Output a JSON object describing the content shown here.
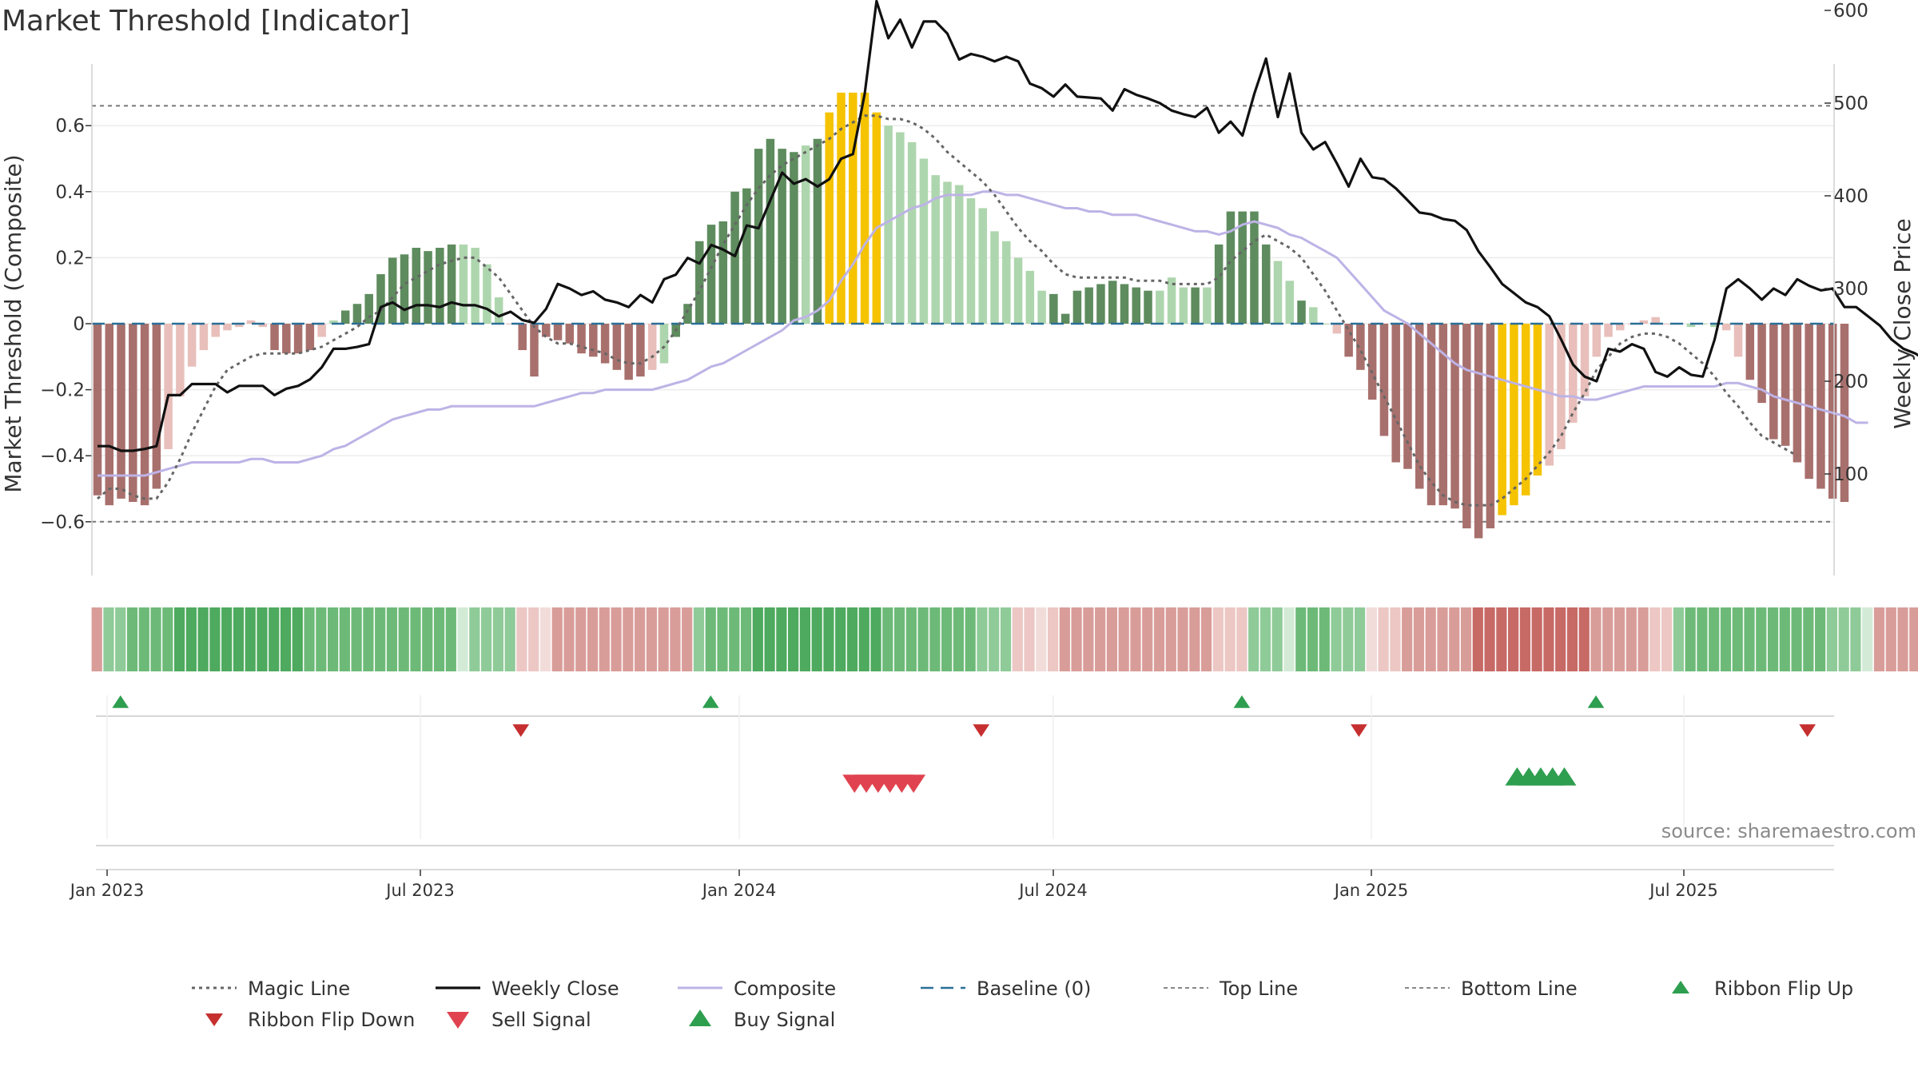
{
  "chart_data": {
    "type": "bar",
    "title": "Market Threshold [Indicator]",
    "ylabel_left": "Market Threshold (Composite)",
    "ylabel_right": "Weekly Close Price",
    "source": "source: sharemaestro.com",
    "yticks_left": [
      "0.6",
      "0.4",
      "0.2",
      "0",
      "−0.2",
      "−0.4",
      "−0.6"
    ],
    "yticks_right": [
      "600",
      "500",
      "400",
      "300",
      "200",
      "100"
    ],
    "xticks": [
      "Jan 2023",
      "Jul 2023",
      "Jan 2024",
      "Jul 2024",
      "Jan 2025",
      "Jul 2025"
    ],
    "top_line": 0.66,
    "bottom_line": -0.6,
    "colors": {
      "strong_green": "#5e8c5e",
      "light_green": "#aed6ae",
      "strong_red": "#a8706d",
      "light_red": "#e8bfbb",
      "gold": "#f5c300",
      "weekly_close": "#111111",
      "composite": "#bdb3e6",
      "magic": "#666666",
      "baseline": "#2a6f97",
      "buy": "#2e9e4f",
      "sell": "#d23a3a"
    },
    "composite_bars": [
      -0.52,
      -0.55,
      -0.53,
      -0.54,
      -0.55,
      -0.5,
      -0.38,
      -0.22,
      -0.13,
      -0.08,
      -0.04,
      -0.02,
      -0.01,
      0.01,
      -0.01,
      -0.08,
      -0.09,
      -0.09,
      -0.08,
      -0.04,
      0.01,
      0.04,
      0.06,
      0.09,
      0.15,
      0.2,
      0.21,
      0.23,
      0.22,
      0.23,
      0.24,
      0.24,
      0.23,
      0.18,
      0.08,
      0,
      -0.08,
      -0.16,
      -0.04,
      -0.05,
      -0.06,
      -0.09,
      -0.1,
      -0.12,
      -0.14,
      -0.17,
      -0.16,
      -0.14,
      -0.12,
      -0.04,
      0.06,
      0.25,
      0.3,
      0.31,
      0.4,
      0.41,
      0.53,
      0.56,
      0.53,
      0.52,
      0.54,
      0.56,
      0.64,
      0.7,
      0.7,
      0.7,
      0.64,
      0.6,
      0.58,
      0.55,
      0.5,
      0.45,
      0.43,
      0.42,
      0.38,
      0.35,
      0.28,
      0.25,
      0.2,
      0.16,
      0.1,
      0.09,
      0.03,
      0.1,
      0.11,
      0.12,
      0.13,
      0.12,
      0.11,
      0.1,
      0.1,
      0.14,
      0.11,
      0.11,
      0.11,
      0.24,
      0.34,
      0.34,
      0.34,
      0.24,
      0.19,
      0.13,
      0.07,
      0.05,
      0,
      -0.03,
      -0.1,
      -0.14,
      -0.23,
      -0.34,
      -0.42,
      -0.44,
      -0.5,
      -0.55,
      -0.55,
      -0.56,
      -0.62,
      -0.65,
      -0.62,
      -0.58,
      -0.55,
      -0.52,
      -0.46,
      -0.43,
      -0.38,
      -0.3,
      -0.22,
      -0.1,
      -0.04,
      -0.02,
      0,
      0.01,
      0.02,
      0,
      0,
      -0.01,
      0,
      -0.01,
      -0.02,
      -0.1,
      -0.17,
      -0.24,
      -0.35,
      -0.37,
      -0.42,
      -0.47,
      -0.5,
      -0.53,
      -0.54
    ],
    "bar_tones": "RRRRRRrrrrrrrrrRRRRrgGGGGGGGGGGggggrRRRRRRRRRRRrgGGGGGGGGGGGgGYYYYYggggggggggggggGGGGGGGGGgggGgGGGGGggGggrRRRRRRRRRRRRRYYYYrrrrrrrrrrrggggrrRRRRRRRRRR",
    "weekly_close": [
      130,
      130,
      125,
      125,
      127,
      130,
      185,
      185,
      197,
      197,
      197,
      188,
      195,
      195,
      195,
      185,
      192,
      195,
      202,
      215,
      235,
      235,
      237,
      240,
      280,
      285,
      277,
      282,
      282,
      280,
      285,
      282,
      282,
      278,
      270,
      275,
      266,
      263,
      278,
      305,
      300,
      293,
      297,
      288,
      285,
      280,
      293,
      285,
      310,
      315,
      333,
      327,
      347,
      342,
      335,
      368,
      365,
      395,
      425,
      413,
      418,
      410,
      418,
      440,
      445,
      510,
      610,
      570,
      590,
      560,
      588,
      588,
      575,
      547,
      553,
      550,
      545,
      550,
      545,
      521,
      516,
      507,
      520,
      507,
      506,
      505,
      492,
      515,
      509,
      505,
      500,
      492,
      488,
      485,
      495,
      468,
      480,
      465,
      510,
      548,
      485,
      532,
      468,
      450,
      458,
      435,
      410,
      440,
      420,
      418,
      408,
      395,
      382,
      380,
      375,
      373,
      363,
      340,
      323,
      305,
      295,
      285,
      280,
      270,
      245,
      218,
      205,
      200,
      235,
      232,
      240,
      235,
      210,
      205,
      215,
      207,
      205,
      245,
      300,
      310,
      300,
      288,
      300,
      293,
      310,
      303,
      298,
      300,
      280,
      280,
      270,
      260,
      245,
      235,
      230,
      222,
      206,
      200,
      205,
      215,
      228,
      226
    ],
    "composite_line": [
      -0.46,
      -0.46,
      -0.46,
      -0.46,
      -0.46,
      -0.45,
      -0.44,
      -0.43,
      -0.42,
      -0.42,
      -0.42,
      -0.42,
      -0.42,
      -0.41,
      -0.41,
      -0.42,
      -0.42,
      -0.42,
      -0.41,
      -0.4,
      -0.38,
      -0.37,
      -0.35,
      -0.33,
      -0.31,
      -0.29,
      -0.28,
      -0.27,
      -0.26,
      -0.26,
      -0.25,
      -0.25,
      -0.25,
      -0.25,
      -0.25,
      -0.25,
      -0.25,
      -0.25,
      -0.24,
      -0.23,
      -0.22,
      -0.21,
      -0.21,
      -0.2,
      -0.2,
      -0.2,
      -0.2,
      -0.2,
      -0.19,
      -0.18,
      -0.17,
      -0.15,
      -0.13,
      -0.12,
      -0.1,
      -0.08,
      -0.06,
      -0.04,
      -0.02,
      0.01,
      0.02,
      0.04,
      0.07,
      0.13,
      0.18,
      0.24,
      0.29,
      0.31,
      0.33,
      0.35,
      0.36,
      0.38,
      0.39,
      0.39,
      0.39,
      0.4,
      0.4,
      0.39,
      0.39,
      0.38,
      0.37,
      0.36,
      0.35,
      0.35,
      0.34,
      0.34,
      0.33,
      0.33,
      0.33,
      0.32,
      0.31,
      0.3,
      0.29,
      0.28,
      0.28,
      0.27,
      0.28,
      0.3,
      0.31,
      0.3,
      0.29,
      0.27,
      0.26,
      0.24,
      0.22,
      0.2,
      0.16,
      0.12,
      0.08,
      0.04,
      0.02,
      0,
      -0.03,
      -0.06,
      -0.09,
      -0.12,
      -0.14,
      -0.15,
      -0.16,
      -0.17,
      -0.18,
      -0.19,
      -0.2,
      -0.21,
      -0.22,
      -0.22,
      -0.23,
      -0.23,
      -0.22,
      -0.21,
      -0.2,
      -0.19,
      -0.19,
      -0.19,
      -0.19,
      -0.19,
      -0.19,
      -0.19,
      -0.18,
      -0.18,
      -0.19,
      -0.2,
      -0.22,
      -0.23,
      -0.24,
      -0.25,
      -0.26,
      -0.27,
      -0.28,
      -0.3,
      -0.3
    ],
    "magic_line": [
      -0.53,
      -0.5,
      -0.5,
      -0.52,
      -0.53,
      -0.53,
      -0.48,
      -0.41,
      -0.33,
      -0.26,
      -0.19,
      -0.14,
      -0.12,
      -0.1,
      -0.09,
      -0.09,
      -0.09,
      -0.09,
      -0.08,
      -0.07,
      -0.05,
      -0.03,
      -0.01,
      0.02,
      0.04,
      0.08,
      0.12,
      0.14,
      0.16,
      0.18,
      0.19,
      0.2,
      0.2,
      0.17,
      0.14,
      0.09,
      0.04,
      -0.01,
      -0.04,
      -0.06,
      -0.06,
      -0.07,
      -0.08,
      -0.09,
      -0.11,
      -0.12,
      -0.12,
      -0.1,
      -0.07,
      -0.02,
      0.04,
      0.1,
      0.17,
      0.24,
      0.3,
      0.36,
      0.41,
      0.45,
      0.48,
      0.5,
      0.52,
      0.54,
      0.56,
      0.59,
      0.61,
      0.63,
      0.63,
      0.62,
      0.62,
      0.61,
      0.59,
      0.56,
      0.52,
      0.49,
      0.46,
      0.43,
      0.39,
      0.34,
      0.29,
      0.25,
      0.22,
      0.18,
      0.15,
      0.14,
      0.14,
      0.14,
      0.14,
      0.14,
      0.13,
      0.13,
      0.13,
      0.12,
      0.12,
      0.12,
      0.12,
      0.14,
      0.19,
      0.22,
      0.25,
      0.27,
      0.25,
      0.23,
      0.2,
      0.15,
      0.1,
      0.04,
      -0.02,
      -0.08,
      -0.15,
      -0.22,
      -0.29,
      -0.36,
      -0.43,
      -0.48,
      -0.52,
      -0.54,
      -0.55,
      -0.55,
      -0.55,
      -0.53,
      -0.5,
      -0.47,
      -0.43,
      -0.39,
      -0.34,
      -0.27,
      -0.21,
      -0.14,
      -0.1,
      -0.06,
      -0.04,
      -0.03,
      -0.03,
      -0.04,
      -0.06,
      -0.09,
      -0.12,
      -0.16,
      -0.21,
      -0.25,
      -0.3,
      -0.34,
      -0.36,
      -0.38,
      -0.4
    ],
    "ribbon": [
      -2,
      1,
      1,
      2,
      2,
      2,
      2,
      3,
      3,
      3,
      3,
      3,
      3,
      3,
      3,
      3,
      3,
      3,
      2,
      2,
      2,
      2,
      2,
      2,
      2,
      2,
      2,
      2,
      2,
      2,
      2,
      1,
      1,
      1,
      1,
      1,
      -1,
      -1,
      -1,
      -2,
      -2,
      -2,
      -2,
      -2,
      -2,
      -2,
      -2,
      -2,
      -2,
      -2,
      -2,
      1,
      2,
      2,
      2,
      2,
      3,
      3,
      3,
      3,
      3,
      3,
      3,
      3,
      3,
      3,
      3,
      2,
      2,
      2,
      2,
      2,
      2,
      2,
      2,
      1,
      1,
      1,
      -1,
      -1,
      -1,
      -1,
      -2,
      -2,
      -2,
      -2,
      -2,
      -2,
      -2,
      -2,
      -2,
      -2,
      -2,
      -2,
      -2,
      -1,
      -1,
      -1,
      1,
      1,
      1,
      1,
      2,
      2,
      2,
      1,
      1,
      1,
      -1,
      -1,
      -1,
      -2,
      -2,
      -2,
      -2,
      -2,
      -2,
      -3,
      -3,
      -3,
      -3,
      -3,
      -3,
      -3,
      -3,
      -3,
      -3,
      -2,
      -2,
      -2,
      -2,
      -2,
      -1,
      -1,
      1,
      2,
      2,
      2,
      2,
      2,
      2,
      2,
      2,
      2,
      2,
      2,
      2,
      1,
      1,
      1,
      1,
      -2,
      -2,
      -2,
      -2,
      -2,
      -2,
      -2,
      -2
    ],
    "ribbon_flip_up": [
      1,
      51,
      96,
      126
    ],
    "ribbon_flip_down": [
      36,
      75,
      107,
      145
    ],
    "sell_signal": [
      64,
      65,
      66,
      67,
      68,
      69
    ],
    "buy_signal": [
      120,
      121,
      122,
      123,
      124
    ],
    "legend": [
      {
        "label": "Magic Line",
        "kind": "dotted-gray"
      },
      {
        "label": "Weekly Close",
        "kind": "solid-black"
      },
      {
        "label": "Composite",
        "kind": "solid-lavender"
      },
      {
        "label": "Baseline (0)",
        "kind": "dashed-blue"
      },
      {
        "label": "Top Line",
        "kind": "dotted-light"
      },
      {
        "label": "Bottom Line",
        "kind": "dotted-light"
      },
      {
        "label": "Ribbon Flip Up",
        "kind": "triangle-up-green"
      },
      {
        "label": "Ribbon Flip Down",
        "kind": "triangle-down-red"
      },
      {
        "label": "Sell Signal",
        "kind": "triangle-down-red-large"
      },
      {
        "label": "Buy Signal",
        "kind": "triangle-up-green-large"
      }
    ]
  }
}
